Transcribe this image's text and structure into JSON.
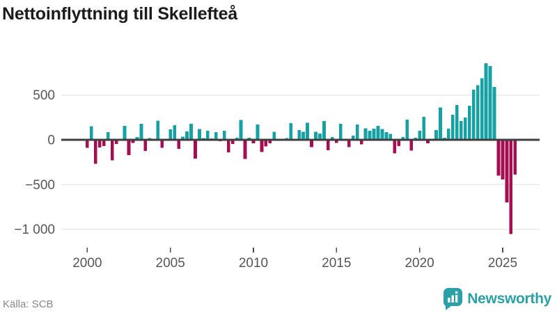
{
  "title": "Nettoinflyttning till Skellefteå",
  "source": "Källa: SCB",
  "brand": {
    "name": "Newsworthy",
    "color": "#2ba0a5"
  },
  "colors": {
    "positive_bar": "#16a2a4",
    "negative_bar": "#a50f52",
    "grid": "#e8e8e8",
    "zero_axis": "#3f3f3f",
    "axis_label": "#54565a",
    "tick_mark": "#4b4d4f"
  },
  "chart_data": {
    "type": "bar",
    "title": "Nettoinflyttning till Skellefteå",
    "period": "quarterly",
    "start_quarter": "2000Q1",
    "end_quarter": "2025Q4",
    "series": [
      {
        "name": "Nettoinflyttning",
        "values": [
          -90,
          150,
          -270,
          -85,
          -70,
          85,
          -230,
          -45,
          0,
          155,
          -170,
          -35,
          30,
          180,
          -125,
          20,
          0,
          215,
          -90,
          0,
          115,
          165,
          -100,
          35,
          95,
          180,
          -210,
          120,
          20,
          100,
          15,
          85,
          -15,
          100,
          -140,
          -45,
          25,
          220,
          -215,
          25,
          -40,
          170,
          -135,
          -75,
          -40,
          90,
          0,
          0,
          20,
          185,
          0,
          110,
          90,
          190,
          -80,
          90,
          70,
          210,
          -115,
          30,
          -35,
          180,
          0,
          -80,
          45,
          170,
          -50,
          130,
          100,
          125,
          155,
          120,
          85,
          65,
          -150,
          -70,
          30,
          225,
          -120,
          25,
          100,
          255,
          -40,
          0,
          110,
          360,
          25,
          125,
          280,
          390,
          210,
          250,
          380,
          560,
          610,
          690,
          855,
          825,
          590,
          -400,
          -445,
          -700,
          -1055,
          -390
        ]
      }
    ],
    "xticks": [
      2000,
      2005,
      2010,
      2015,
      2020,
      2025
    ],
    "yticks": [
      {
        "value": 500,
        "label": "500"
      },
      {
        "value": 0,
        "label": "0"
      },
      {
        "value": -500,
        "label": "−500"
      },
      {
        "value": -1000,
        "label": "−1 000"
      }
    ],
    "ylim": [
      -1150,
      900
    ],
    "grid": "horizontal",
    "legend": "none"
  }
}
